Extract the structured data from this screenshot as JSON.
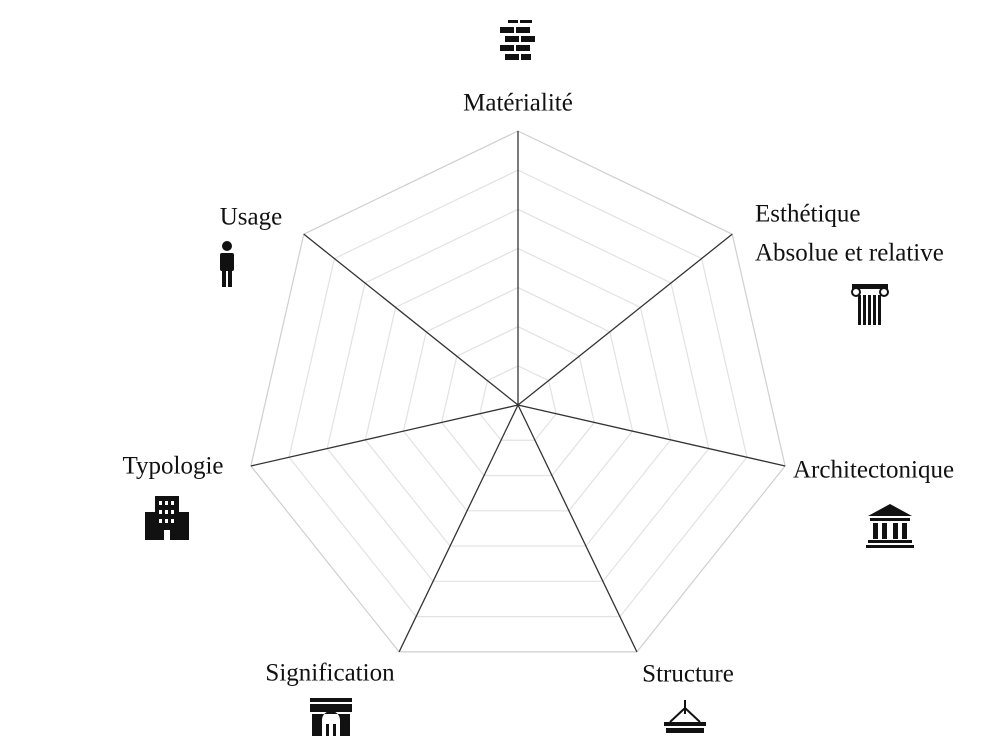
{
  "axes": [
    {
      "lines": [
        "Matérialité"
      ]
    },
    {
      "lines": [
        "Esthétique",
        "Absolue et relative"
      ]
    },
    {
      "lines": [
        "Architectonique"
      ]
    },
    {
      "lines": [
        "Structure"
      ]
    },
    {
      "lines": [
        "Signification"
      ]
    },
    {
      "lines": [
        "Typologie"
      ]
    },
    {
      "lines": [
        "Usage"
      ]
    }
  ]
}
